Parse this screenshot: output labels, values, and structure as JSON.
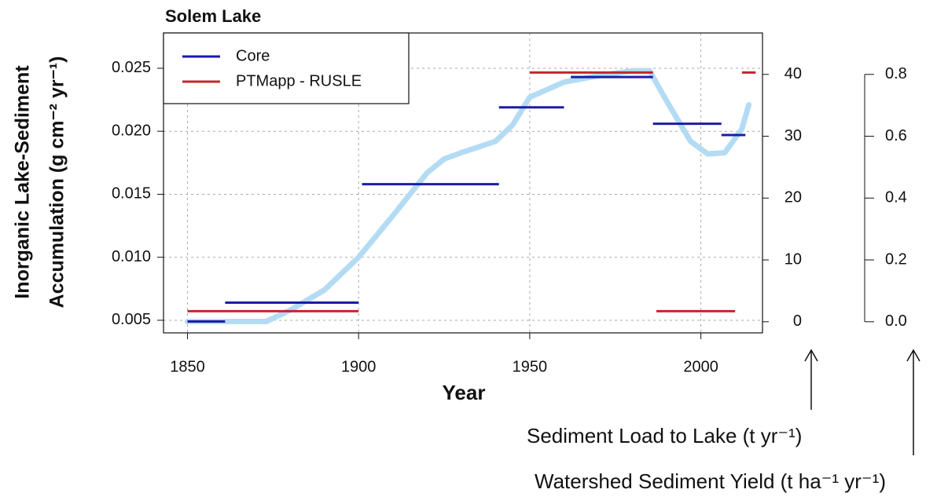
{
  "chart_data": {
    "type": "line",
    "title": "Solem Lake",
    "xlabel": "Year",
    "ylabel": [
      "Inorganic Lake-Sediment",
      "Accumulation (g cm⁻² yr⁻¹)"
    ],
    "y2label": "Sediment Load to Lake (t yr⁻¹)",
    "y3label": "Watershed Sediment Yield (t ha⁻¹ yr⁻¹)",
    "xlim": [
      1843,
      2018
    ],
    "xticks": [
      1850,
      1900,
      1950,
      2000
    ],
    "ylim": [
      0.004,
      0.0278
    ],
    "yticks": [
      0.005,
      {
        "value": 0.01,
        "label": "0.010"
      },
      0.015,
      {
        "value": 0.02,
        "label": "0.020"
      },
      0.025
    ],
    "y2lim": [
      -1.8,
      46.7
    ],
    "y2ticks": [
      0,
      10,
      20,
      30,
      40
    ],
    "y3lim": [
      -0.036,
      0.934
    ],
    "y3ticks": [
      {
        "value": 0,
        "label": "0.0"
      },
      0.2,
      0.4,
      0.6,
      0.8
    ],
    "grid": true,
    "legend": "top-left",
    "series": [
      {
        "name": "Core",
        "color": "#1c1ca8",
        "x_start": [
          1850,
          1861,
          1901,
          1941,
          1962,
          1986,
          2006
        ],
        "x_end": [
          1861,
          1900,
          1941,
          1960,
          1986,
          2006,
          2013
        ],
        "values": [
          0.0049,
          0.0064,
          0.0158,
          0.0219,
          0.0243,
          0.0206,
          0.0197
        ]
      },
      {
        "name": "PTMapp - RUSLE",
        "color": "#c0282d",
        "axis": "y2",
        "x_start": [
          1850,
          1950,
          1987,
          2012
        ],
        "x_end": [
          1900,
          1986,
          2010,
          2016
        ],
        "values": [
          1.7,
          40.3,
          1.7,
          40.3
        ]
      }
    ],
    "curve": {
      "color": "#b3dcf4",
      "x": [
        1850,
        1873,
        1880,
        1890,
        1900,
        1910,
        1920,
        1925,
        1930,
        1940,
        1945,
        1950,
        1960,
        1970,
        1980,
        1985,
        1990,
        1997,
        2002,
        2007,
        2012,
        2014
      ],
      "values": [
        0.0049,
        0.0049,
        0.0058,
        0.0074,
        0.01,
        0.0133,
        0.0167,
        0.0178,
        0.0183,
        0.0192,
        0.0205,
        0.0227,
        0.0239,
        0.0244,
        0.0248,
        0.0248,
        0.0224,
        0.0192,
        0.0182,
        0.0183,
        0.0202,
        0.0221
      ]
    }
  }
}
